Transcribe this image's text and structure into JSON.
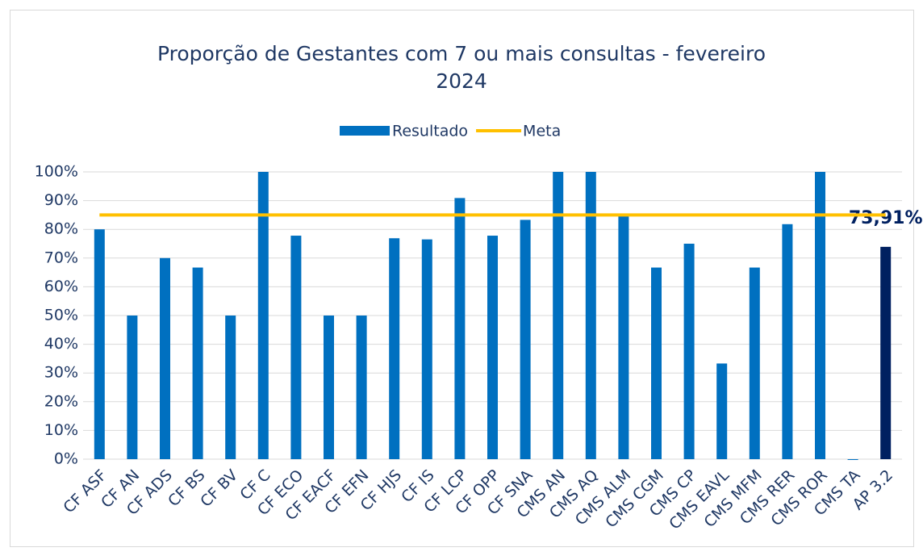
{
  "chart_data": {
    "type": "bar",
    "title": "Proporção de Gestantes com 7 ou mais consultas - fevereiro 2024",
    "categories": [
      "CF ASF",
      "CF AN",
      "CF ADS",
      "CF BS",
      "CF BV",
      "CF C",
      "CF ECO",
      "CF EACF",
      "CF EFN",
      "CF HJS",
      "CF IS",
      "CF LCP",
      "CF OPP",
      "CF SNA",
      "CMS AN",
      "CMS AQ",
      "CMS ALM",
      "CMS CGM",
      "CMS CP",
      "CMS EAVL",
      "CMS MFM",
      "CMS RER",
      "CMS ROR",
      "CMS TA",
      "AP 3.2"
    ],
    "series": [
      {
        "name": "Resultado",
        "type": "bar",
        "color": "#0070c0",
        "colors": [
          "#0070c0",
          "#0070c0",
          "#0070c0",
          "#0070c0",
          "#0070c0",
          "#0070c0",
          "#0070c0",
          "#0070c0",
          "#0070c0",
          "#0070c0",
          "#0070c0",
          "#0070c0",
          "#0070c0",
          "#0070c0",
          "#0070c0",
          "#0070c0",
          "#0070c0",
          "#0070c0",
          "#0070c0",
          "#0070c0",
          "#0070c0",
          "#0070c0",
          "#0070c0",
          "#0070c0",
          "#002060"
        ],
        "values": [
          80,
          50,
          70,
          66.7,
          50,
          100,
          77.8,
          50,
          50,
          76.9,
          76.5,
          90.9,
          77.8,
          83.3,
          100,
          100,
          85,
          66.7,
          75,
          33.3,
          66.7,
          81.8,
          100,
          0,
          73.91
        ],
        "value_labels": [
          null,
          null,
          null,
          null,
          null,
          null,
          null,
          null,
          null,
          null,
          null,
          null,
          null,
          null,
          null,
          null,
          null,
          null,
          null,
          null,
          null,
          null,
          null,
          null,
          "73,91%"
        ]
      },
      {
        "name": "Meta",
        "type": "line",
        "color": "#ffc000",
        "values": [
          85,
          85,
          85,
          85,
          85,
          85,
          85,
          85,
          85,
          85,
          85,
          85,
          85,
          85,
          85,
          85,
          85,
          85,
          85,
          85,
          85,
          85,
          85,
          85,
          85
        ]
      }
    ],
    "ylim": [
      0,
      100
    ],
    "yticks": [
      {
        "value": 0,
        "label": "0%"
      },
      {
        "value": 10,
        "label": "10%"
      },
      {
        "value": 20,
        "label": "20%"
      },
      {
        "value": 30,
        "label": "30%"
      },
      {
        "value": 40,
        "label": "40%"
      },
      {
        "value": 50,
        "label": "50%"
      },
      {
        "value": 60,
        "label": "60%"
      },
      {
        "value": 70,
        "label": "70%"
      },
      {
        "value": 80,
        "label": "80%"
      },
      {
        "value": 90,
        "label": "90%"
      },
      {
        "value": 100,
        "label": "100%"
      }
    ],
    "grid": true,
    "legend": "top"
  }
}
